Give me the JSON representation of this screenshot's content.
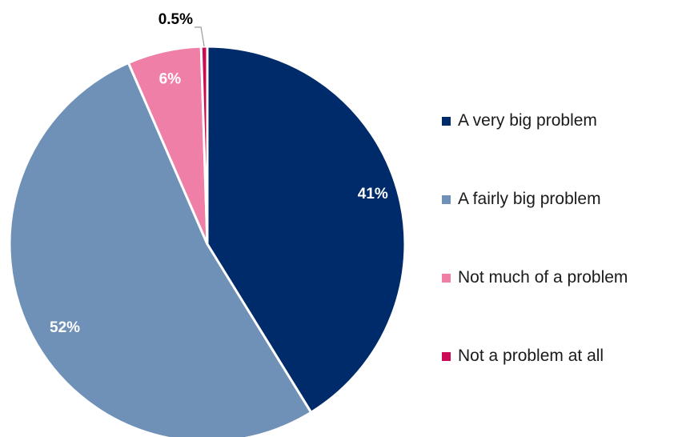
{
  "chart_data": {
    "type": "pie",
    "slices": [
      {
        "label": "A very big problem",
        "value": 41,
        "display": "41%",
        "color": "#002b6b",
        "label_color": "#ffffff"
      },
      {
        "label": "A fairly big problem",
        "value": 52,
        "display": "52%",
        "color": "#7091b7",
        "label_color": "#ffffff"
      },
      {
        "label": "Not much of a problem",
        "value": 6,
        "display": "6%",
        "color": "#f07fa8",
        "label_color": "#ffffff"
      },
      {
        "label": "Not a problem at all",
        "value": 0.5,
        "display": "0.5%",
        "color": "#cc0a55",
        "label_color": "#000000"
      }
    ],
    "start_angle": "12 o'clock",
    "direction": "clockwise",
    "legend_position": "right"
  }
}
